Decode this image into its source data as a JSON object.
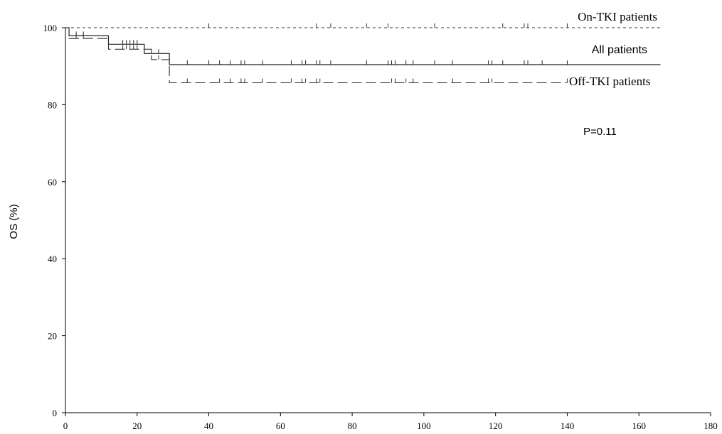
{
  "chart_data": {
    "type": "line",
    "title": "",
    "xlabel": "",
    "ylabel": "OS (%)",
    "xlim": [
      0,
      180
    ],
    "ylim": [
      0,
      100
    ],
    "x_ticks": [
      0,
      20,
      40,
      60,
      80,
      100,
      120,
      140,
      160,
      180
    ],
    "y_ticks": [
      0,
      20,
      40,
      60,
      80,
      100
    ],
    "grid": false,
    "series": [
      {
        "name": "On-TKI patients",
        "style": "dotted",
        "steps": [
          [
            0,
            100
          ],
          [
            166,
            100
          ]
        ],
        "censors": [
          40,
          70,
          74,
          84,
          90,
          103,
          122,
          128,
          129,
          140
        ]
      },
      {
        "name": "All patients",
        "style": "solid",
        "steps": [
          [
            0,
            100
          ],
          [
            1,
            97.9
          ],
          [
            12,
            95.7
          ],
          [
            22,
            93.3
          ],
          [
            29,
            90.4
          ],
          [
            166,
            90.4
          ]
        ],
        "censors": [
          3,
          5,
          16,
          17,
          18,
          19,
          20,
          24,
          26,
          34,
          40,
          43,
          46,
          49,
          50,
          55,
          63,
          66,
          67,
          70,
          71,
          74,
          84,
          90,
          91,
          92,
          95,
          97,
          103,
          108,
          118,
          119,
          122,
          128,
          129,
          133,
          140
        ]
      },
      {
        "name": "Off-TKI patients",
        "style": "dashed",
        "steps": [
          [
            0,
            100
          ],
          [
            1,
            97.2
          ],
          [
            12,
            94.4
          ],
          [
            24,
            91.7
          ],
          [
            29,
            85.7
          ],
          [
            140,
            85.7
          ]
        ],
        "censors": [
          3,
          5,
          16,
          17,
          18,
          19,
          20,
          24,
          26,
          34,
          43,
          46,
          49,
          50,
          55,
          63,
          66,
          67,
          70,
          71,
          91,
          92,
          95,
          97,
          108,
          118,
          119,
          140
        ]
      }
    ],
    "annotations": [
      {
        "text": "P=0.11"
      }
    ]
  }
}
